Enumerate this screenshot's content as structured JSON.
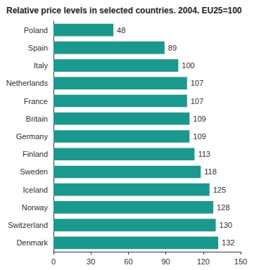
{
  "chart_data": {
    "type": "bar",
    "orientation": "horizontal",
    "title": "Relative price levels in selected countries. 2004. EU25=100",
    "categories": [
      "Poland",
      "Spain",
      "Italy",
      "Netherlands",
      "France",
      "Britain",
      "Germany",
      "Finland",
      "Sweden",
      "Iceland",
      "Norway",
      "Switzerland",
      "Denmark"
    ],
    "values": [
      48,
      89,
      100,
      107,
      107,
      109,
      109,
      113,
      118,
      125,
      128,
      130,
      132
    ],
    "color": "#1a9a8e",
    "xlim": [
      0,
      150
    ],
    "xticks": [
      0,
      30,
      60,
      90,
      120,
      150
    ],
    "grid": false,
    "data_labels": true
  }
}
